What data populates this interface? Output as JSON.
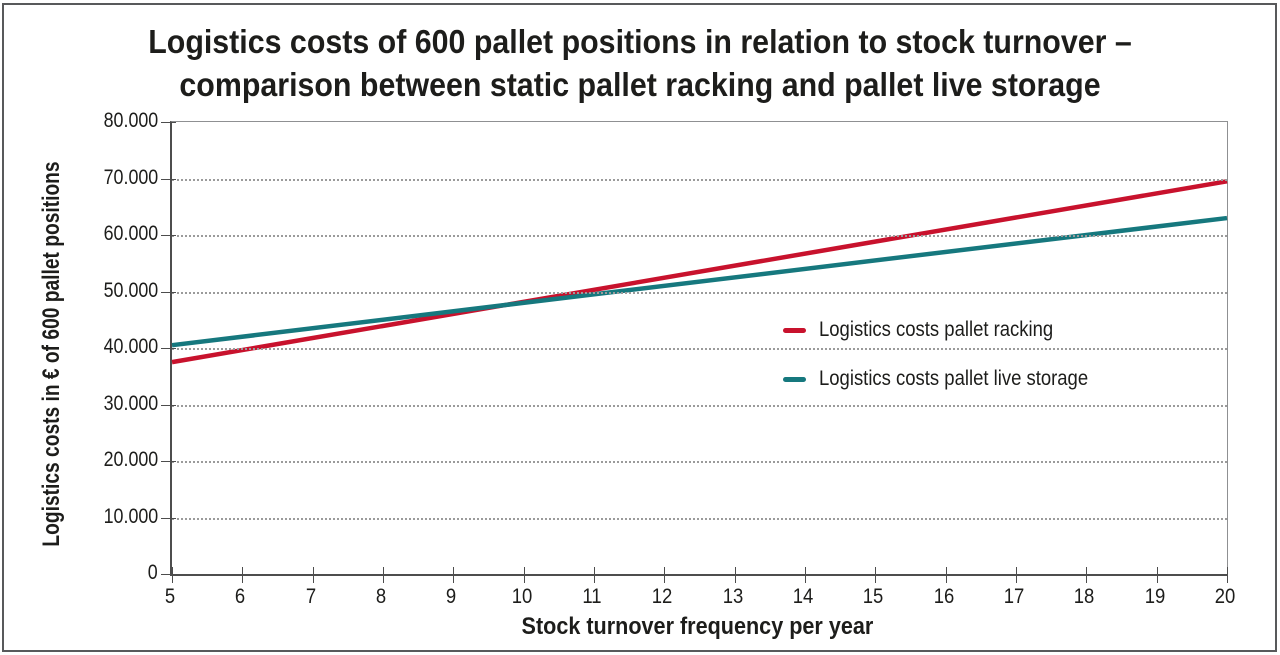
{
  "title": {
    "line1": "Logistics costs of 600 pallet positions in relation to stock turnover –",
    "line2": "comparison between static pallet racking and pallet live storage"
  },
  "y_axis": {
    "label": "Logistics costs in € of 600 pallet positions",
    "tick_labels": [
      "0",
      "10.000",
      "20.000",
      "30.000",
      "40.000",
      "50.000",
      "60.000",
      "70.000",
      "80.000"
    ]
  },
  "x_axis": {
    "label": "Stock turnover frequency per year",
    "tick_labels": [
      "5",
      "6",
      "7",
      "8",
      "9",
      "10",
      "11",
      "12",
      "13",
      "14",
      "15",
      "16",
      "17",
      "18",
      "19",
      "20"
    ]
  },
  "legend": {
    "items": [
      {
        "label": "Logistics costs pallet racking",
        "color": "#c8122d"
      },
      {
        "label": "Logistics costs pallet live storage",
        "color": "#16787e"
      }
    ]
  },
  "colors": {
    "text": "#1d1d1b",
    "axis": "#4d4d4d",
    "grid": "#9b9b9b",
    "frame_border": "#58595b",
    "plot_border": "#8f9092",
    "pallet_racking": "#c8122d",
    "pallet_live_storage": "#16787e"
  },
  "chart_data": {
    "type": "line",
    "title": "Logistics costs of 600 pallet positions in relation to stock turnover – comparison between static pallet racking and pallet live storage",
    "xlabel": "Stock turnover frequency per year",
    "ylabel": "Logistics costs in € of 600 pallet positions",
    "x": [
      5,
      20
    ],
    "series": [
      {
        "name": "Logistics costs pallet racking",
        "color": "#c8122d",
        "values": [
          37500,
          69500
        ]
      },
      {
        "name": "Logistics costs pallet live storage",
        "color": "#16787e",
        "values": [
          40500,
          63000
        ]
      }
    ],
    "xlim": [
      5,
      20
    ],
    "ylim": [
      0,
      80000
    ],
    "x_ticks": [
      5,
      6,
      7,
      8,
      9,
      10,
      11,
      12,
      13,
      14,
      15,
      16,
      17,
      18,
      19,
      20
    ],
    "y_ticks": [
      0,
      10000,
      20000,
      30000,
      40000,
      50000,
      60000,
      70000,
      80000
    ],
    "grid": "horizontal dotted",
    "legend_position": "inside right"
  }
}
